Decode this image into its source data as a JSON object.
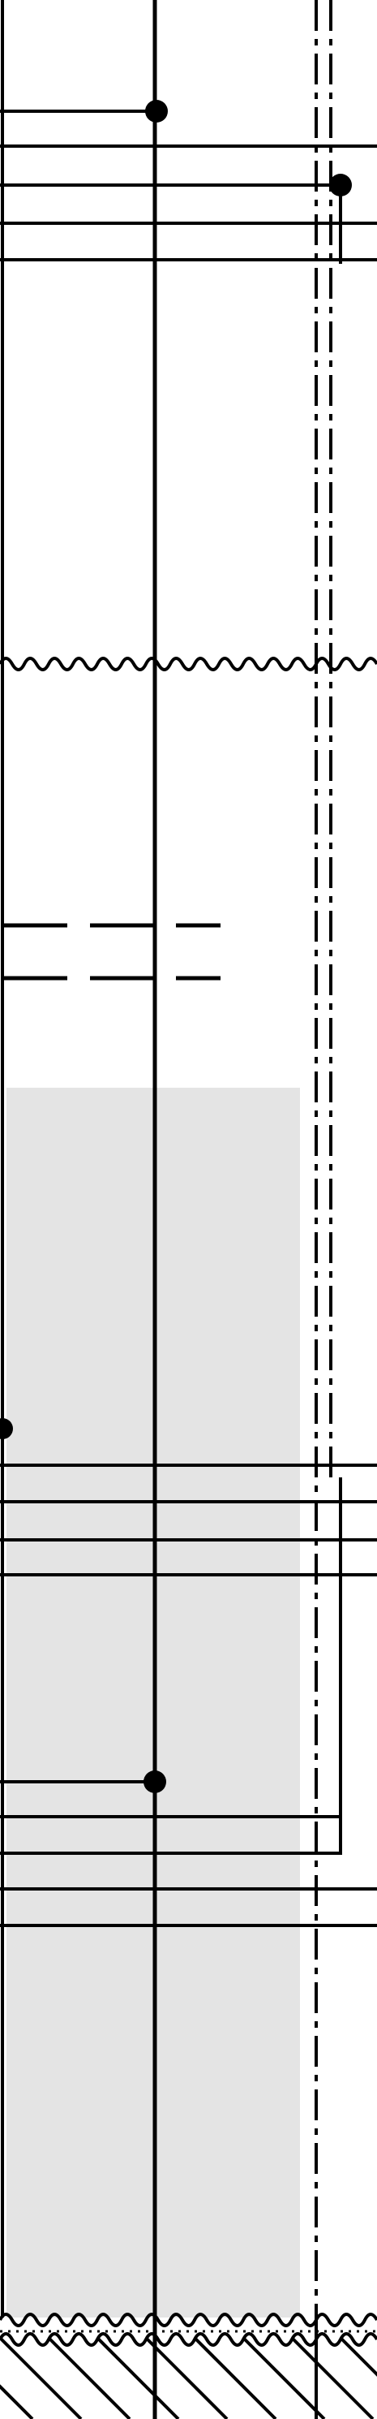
{
  "diagram": {
    "kind": "line drawing",
    "colors": {
      "background": "#ffffff",
      "stroke": "#000000",
      "shaded_region": "#e4e4e4",
      "node": "#000000"
    },
    "line_styles": [
      "solid",
      "dashed",
      "dash-dot",
      "wavy break line",
      "hatched"
    ],
    "text_labels": []
  }
}
